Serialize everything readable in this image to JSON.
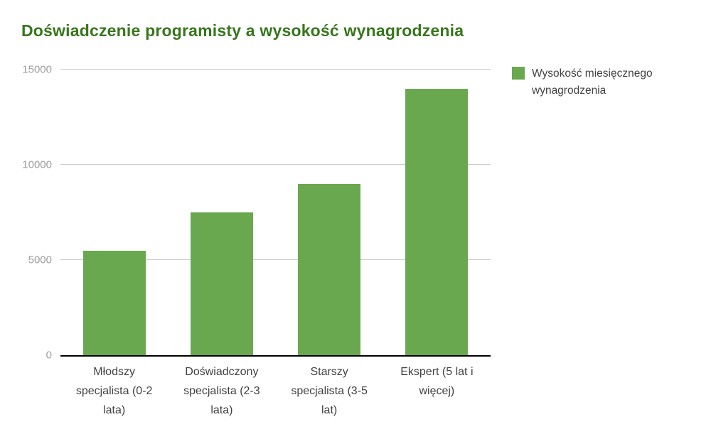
{
  "title": "Doświadczenie programisty a wysokość wynagrodzenia",
  "legend": {
    "label": "Wysokość miesięcznego wynagrodzenia",
    "swatch_color": "#6aa84f"
  },
  "colors": {
    "title": "#38761d",
    "bar": "#6aa84f",
    "gridline": "#cccccc",
    "axis_baseline": "#000000",
    "tick_label": "#9e9e9e",
    "category_label": "#424242"
  },
  "chart_data": {
    "type": "bar",
    "title": "Doświadczenie programisty a wysokość wynagrodzenia",
    "categories": [
      "Młodszy specjalista (0-2 lata)",
      "Doświadczony specjalista (2-3 lata)",
      "Starszy specjalista (3-5 lat)",
      "Ekspert (5 lat i więcej)"
    ],
    "series": [
      {
        "name": "Wysokość miesięcznego wynagrodzenia",
        "values": [
          5500,
          7500,
          9000,
          14000
        ]
      }
    ],
    "xlabel": "",
    "ylabel": "",
    "ylim": [
      0,
      15000
    ],
    "yticks": [
      0,
      5000,
      10000,
      15000
    ],
    "grid": true,
    "legend_position": "right",
    "bar_color": "#6aa84f"
  }
}
